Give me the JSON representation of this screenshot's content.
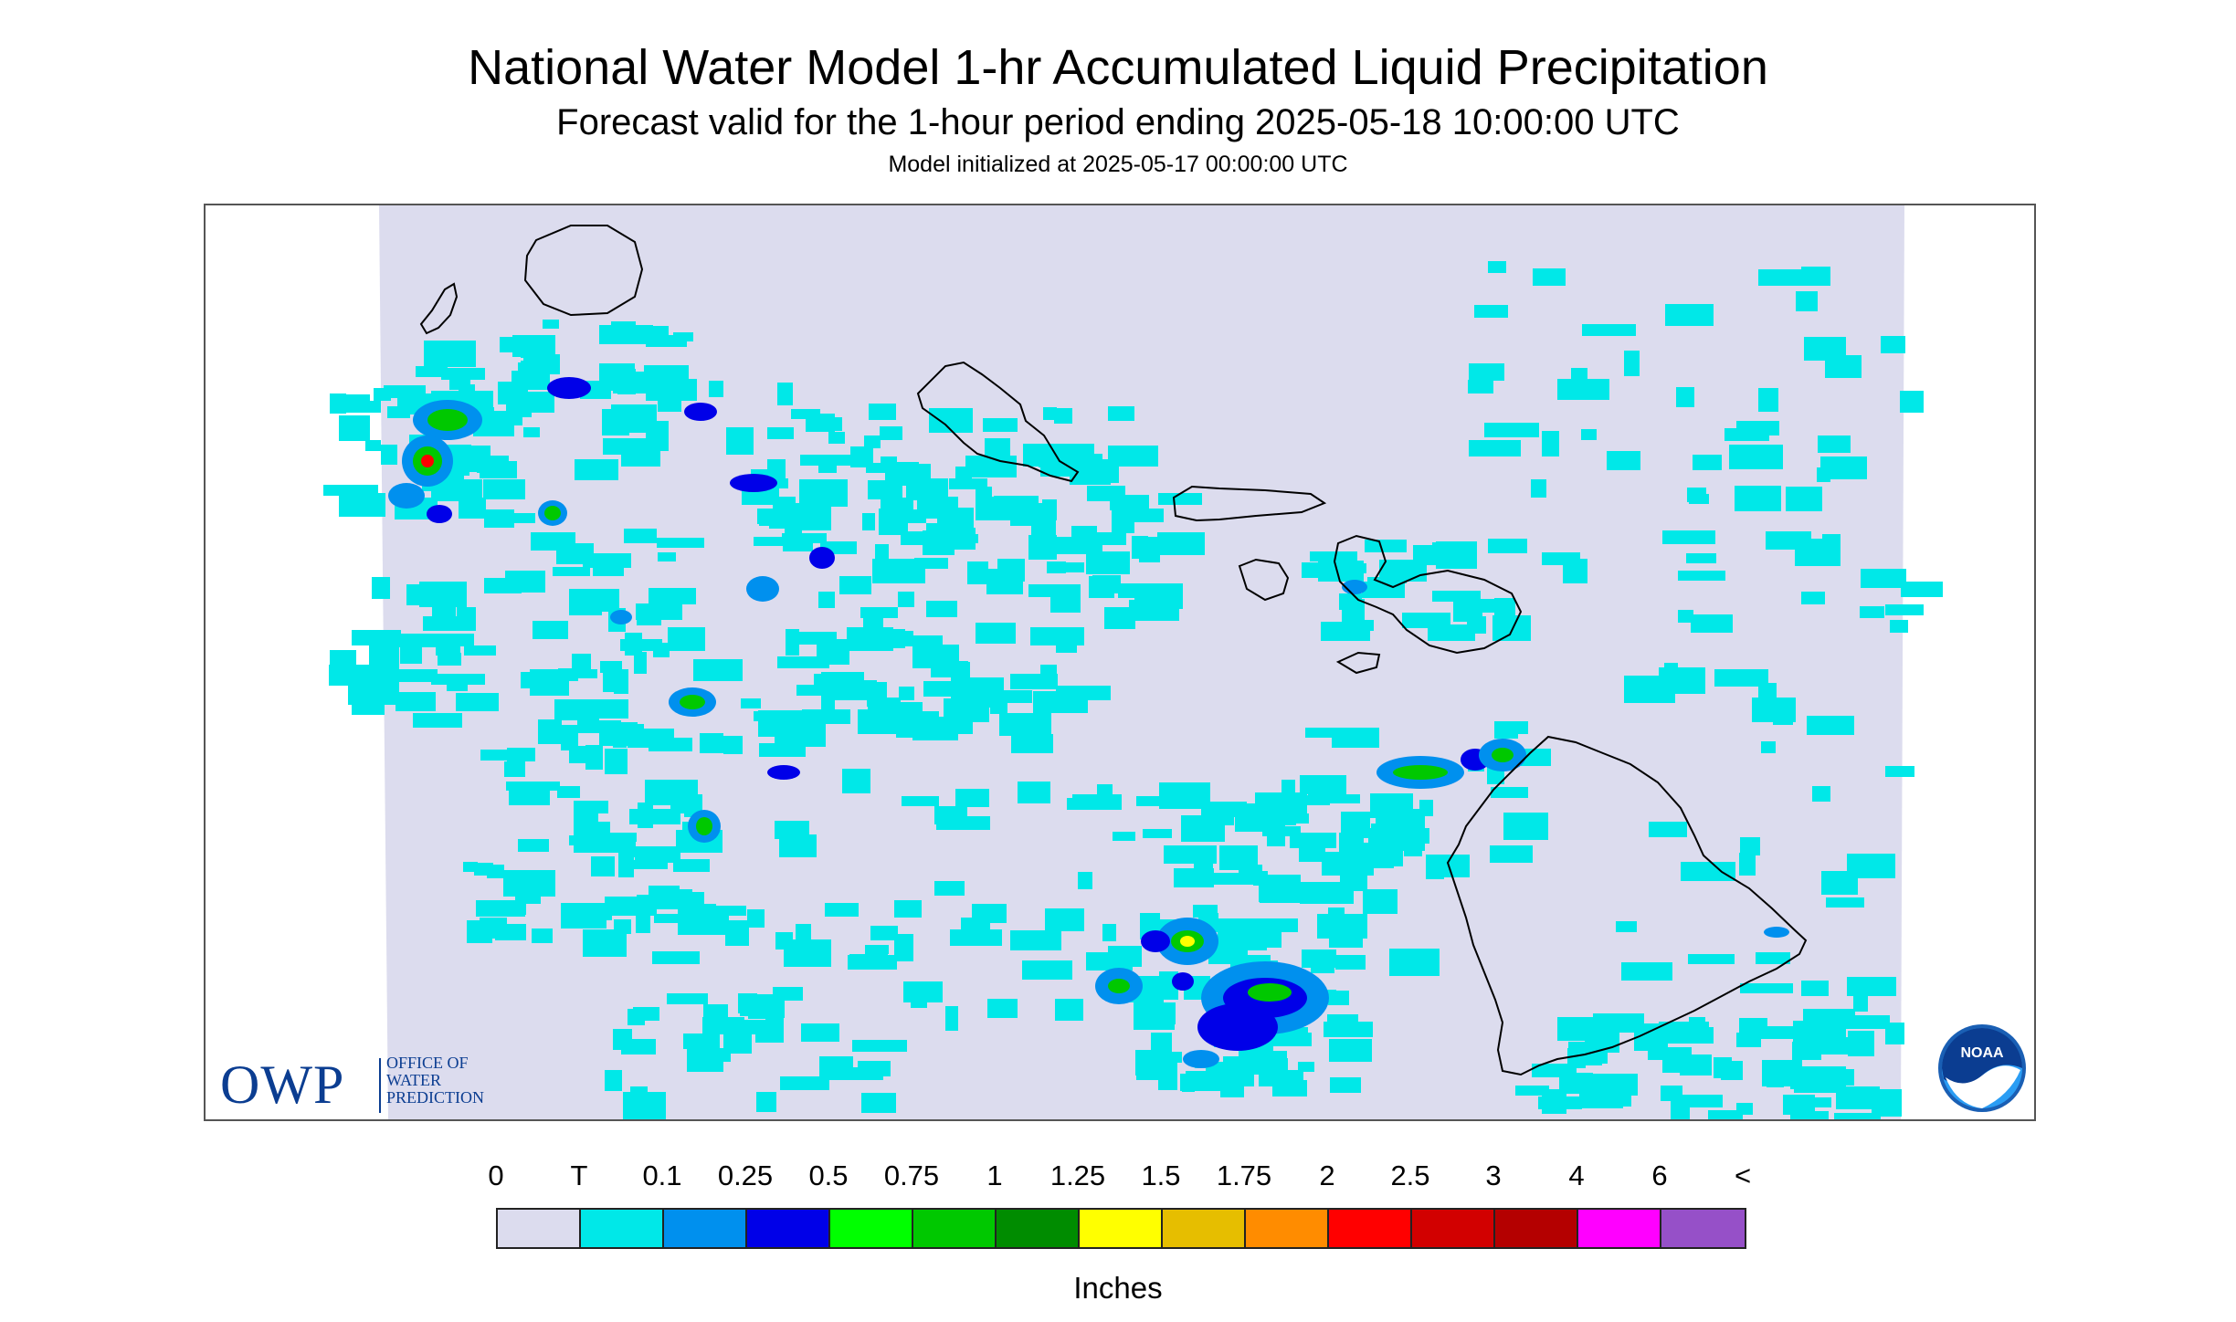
{
  "title": "National Water Model 1-hr Accumulated Liquid Precipitation",
  "subtitle": "Forecast valid for the 1-hour period ending 2025-05-18 10:00:00 UTC",
  "init_line": "Model initialized at 2025-05-17 00:00:00 UTC",
  "logos": {
    "owp_acronym": "OWP",
    "owp_name_1": "OFFICE OF",
    "owp_name_2": "WATER",
    "owp_name_3": "PREDICTION",
    "noaa_text": "NOAA"
  },
  "legend": {
    "labels": [
      "0",
      "T",
      "0.1",
      "0.25",
      "0.5",
      "0.75",
      "1",
      "1.25",
      "1.5",
      "1.75",
      "2",
      "2.5",
      "3",
      "4",
      "6",
      "<"
    ],
    "colors": [
      "#dcdcee",
      "#00e8e8",
      "#0090ee",
      "#0000e8",
      "#00ff00",
      "#00c800",
      "#008c00",
      "#ffff00",
      "#e6be00",
      "#ff8c00",
      "#ff0000",
      "#d20000",
      "#b40000",
      "#ff00ff",
      "#9650c8"
    ],
    "units": "Inches"
  },
  "map": {
    "background_color": "#dcdcee",
    "coastline_color": "#000000",
    "islands": [
      "Kauai",
      "Niihau",
      "Oahu",
      "Molokai",
      "Lanai",
      "Maui",
      "Kahoolawe",
      "Hawaii"
    ]
  }
}
